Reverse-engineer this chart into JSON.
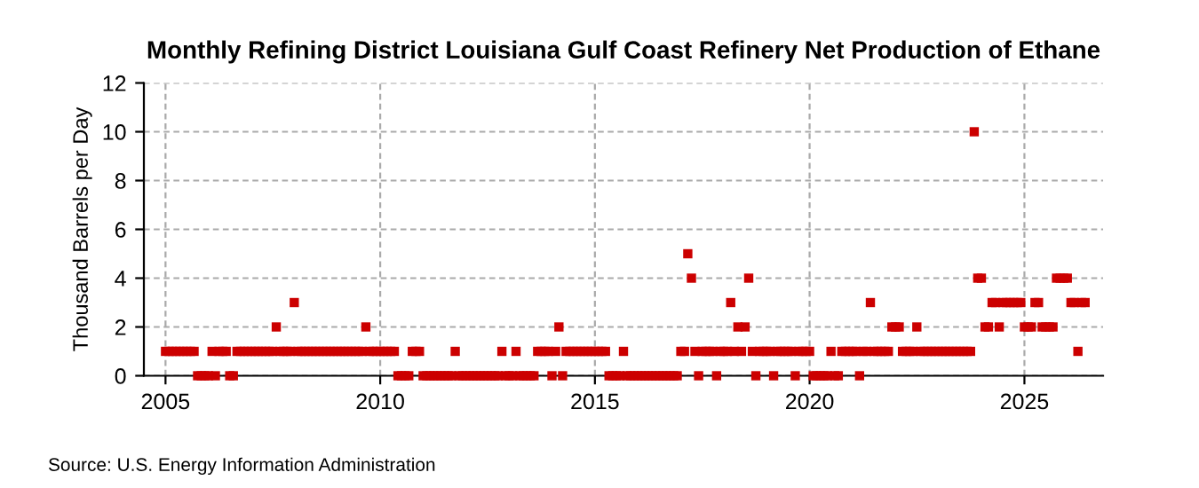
{
  "chart_data": {
    "type": "scatter",
    "title": "Monthly Refining District Louisiana Gulf Coast Refinery Net Production of Ethane",
    "ylabel": "Thousand Barrels per Day",
    "annotations": [
      "Source: U.S. Energy Information Administration"
    ],
    "x": [
      "2005-01",
      "2005-02",
      "2005-03",
      "2005-04",
      "2005-05",
      "2005-06",
      "2005-07",
      "2005-08",
      "2005-09",
      "2005-10",
      "2005-11",
      "2005-12",
      "2006-01",
      "2006-02",
      "2006-03",
      "2006-04",
      "2006-05",
      "2006-06",
      "2006-07",
      "2006-08",
      "2006-09",
      "2006-10",
      "2006-11",
      "2006-12",
      "2007-01",
      "2007-02",
      "2007-03",
      "2007-04",
      "2007-05",
      "2007-06",
      "2007-07",
      "2007-08",
      "2007-09",
      "2007-10",
      "2007-11",
      "2007-12",
      "2008-01",
      "2008-02",
      "2008-03",
      "2008-04",
      "2008-05",
      "2008-06",
      "2008-07",
      "2008-08",
      "2008-09",
      "2008-10",
      "2008-11",
      "2008-12",
      "2009-01",
      "2009-02",
      "2009-03",
      "2009-04",
      "2009-05",
      "2009-06",
      "2009-07",
      "2009-08",
      "2009-09",
      "2009-10",
      "2009-11",
      "2009-12",
      "2010-01",
      "2010-02",
      "2010-03",
      "2010-04",
      "2010-05",
      "2010-06",
      "2010-07",
      "2010-08",
      "2010-09",
      "2010-10",
      "2010-11",
      "2010-12",
      "2011-01",
      "2011-02",
      "2011-03",
      "2011-04",
      "2011-05",
      "2011-06",
      "2011-07",
      "2011-08",
      "2011-09",
      "2011-10",
      "2011-11",
      "2011-12",
      "2012-01",
      "2012-02",
      "2012-03",
      "2012-04",
      "2012-05",
      "2012-06",
      "2012-07",
      "2012-08",
      "2012-09",
      "2012-10",
      "2012-11",
      "2012-12",
      "2013-01",
      "2013-02",
      "2013-03",
      "2013-04",
      "2013-05",
      "2013-06",
      "2013-07",
      "2013-08",
      "2013-09",
      "2013-10",
      "2013-11",
      "2013-12",
      "2014-01",
      "2014-02",
      "2014-03",
      "2014-04",
      "2014-05",
      "2014-06",
      "2014-07",
      "2014-08",
      "2014-09",
      "2014-10",
      "2014-11",
      "2014-12",
      "2015-01",
      "2015-02",
      "2015-03",
      "2015-04",
      "2015-05",
      "2015-06",
      "2015-07",
      "2015-08",
      "2015-09",
      "2015-10",
      "2015-11",
      "2015-12",
      "2016-01",
      "2016-02",
      "2016-03",
      "2016-04",
      "2016-05",
      "2016-06",
      "2016-07",
      "2016-08",
      "2016-09",
      "2016-10",
      "2016-11",
      "2016-12",
      "2017-01",
      "2017-02",
      "2017-03",
      "2017-04",
      "2017-05",
      "2017-06",
      "2017-07",
      "2017-08",
      "2017-09",
      "2017-10",
      "2017-11",
      "2017-12",
      "2018-01",
      "2018-02",
      "2018-03",
      "2018-04",
      "2018-05",
      "2018-06",
      "2018-07",
      "2018-08",
      "2018-09",
      "2018-10",
      "2018-11",
      "2018-12",
      "2019-01",
      "2019-02",
      "2019-03",
      "2019-04",
      "2019-05",
      "2019-06",
      "2019-07",
      "2019-08",
      "2019-09",
      "2019-10",
      "2019-11",
      "2019-12",
      "2020-01",
      "2020-02",
      "2020-03",
      "2020-04",
      "2020-05",
      "2020-06",
      "2020-07",
      "2020-08",
      "2020-09",
      "2020-10",
      "2020-11",
      "2020-12",
      "2021-01",
      "2021-02",
      "2021-03",
      "2021-04",
      "2021-05",
      "2021-06",
      "2021-07",
      "2021-08",
      "2021-09",
      "2021-10",
      "2021-11",
      "2021-12",
      "2022-01",
      "2022-02",
      "2022-03",
      "2022-04",
      "2022-05",
      "2022-06",
      "2022-07",
      "2022-08",
      "2022-09",
      "2022-10",
      "2022-11",
      "2022-12",
      "2023-01",
      "2023-02",
      "2023-03",
      "2023-04",
      "2023-05",
      "2023-06",
      "2023-07",
      "2023-08",
      "2023-09",
      "2023-10",
      "2023-11",
      "2023-12",
      "2024-01",
      "2024-02",
      "2024-03",
      "2024-04",
      "2024-05",
      "2024-06",
      "2024-07",
      "2024-08",
      "2024-09",
      "2024-10",
      "2024-11",
      "2024-12",
      "2025-01",
      "2025-02",
      "2025-03",
      "2025-04",
      "2025-05",
      "2025-06",
      "2025-07",
      "2025-08",
      "2025-09",
      "2025-10",
      "2025-11",
      "2025-12",
      "2026-01",
      "2026-02",
      "2026-03",
      "2026-04",
      "2026-05",
      "2026-06"
    ],
    "series": [
      {
        "color": "#cc0000",
        "values": [
          1,
          1,
          1,
          1,
          1,
          1,
          1,
          1,
          1,
          0,
          0,
          0,
          0,
          1,
          0,
          1,
          1,
          1,
          0,
          0,
          1,
          1,
          1,
          1,
          1,
          1,
          1,
          1,
          1,
          1,
          1,
          2,
          1,
          1,
          1,
          1,
          3,
          1,
          1,
          1,
          1,
          1,
          1,
          1,
          1,
          1,
          1,
          1,
          1,
          1,
          1,
          1,
          1,
          1,
          1,
          1,
          2,
          1,
          1,
          1,
          1,
          1,
          1,
          1,
          1,
          0,
          0,
          0,
          0,
          1,
          1,
          1,
          0,
          0,
          0,
          0,
          0,
          0,
          0,
          0,
          0,
          1,
          0,
          0,
          0,
          0,
          0,
          0,
          0,
          0,
          0,
          0,
          0,
          0,
          1,
          0,
          0,
          0,
          1,
          0,
          0,
          0,
          0,
          0,
          1,
          1,
          1,
          1,
          0,
          1,
          2,
          0,
          1,
          1,
          1,
          1,
          1,
          1,
          1,
          1,
          1,
          1,
          1,
          1,
          0,
          0,
          0,
          0,
          1,
          0,
          0,
          0,
          0,
          0,
          0,
          0,
          0,
          0,
          0,
          0,
          0,
          0,
          0,
          0,
          1,
          1,
          5,
          4,
          1,
          0,
          1,
          1,
          1,
          1,
          0,
          1,
          1,
          1,
          3,
          1,
          2,
          1,
          2,
          4,
          1,
          0,
          1,
          1,
          1,
          1,
          0,
          1,
          1,
          1,
          1,
          1,
          0,
          1,
          1,
          1,
          1,
          0,
          0,
          0,
          0,
          0,
          1,
          0,
          0,
          1,
          1,
          1,
          1,
          1,
          0,
          1,
          1,
          3,
          1,
          1,
          1,
          1,
          1,
          2,
          2,
          2,
          1,
          1,
          1,
          1,
          2,
          1,
          1,
          1,
          1,
          1,
          1,
          1,
          1,
          1,
          1,
          1,
          1,
          1,
          1,
          1,
          10,
          4,
          4,
          2,
          2,
          3,
          3,
          2,
          3,
          3,
          3,
          3,
          3,
          3,
          2,
          2,
          2,
          3,
          3,
          2,
          2,
          2,
          2,
          4,
          4,
          4,
          4,
          3,
          3,
          1,
          3,
          3
        ]
      }
    ],
    "xlim": [
      "2004-07",
      "2026-11"
    ],
    "xticks": [
      {
        "value": "2005",
        "label": "2005"
      },
      {
        "value": "2010",
        "label": "2010"
      },
      {
        "value": "2015",
        "label": "2015"
      },
      {
        "value": "2020",
        "label": "2020"
      },
      {
        "value": "2025",
        "label": "2025"
      }
    ],
    "ylim": [
      0,
      12
    ],
    "yticks": [
      0,
      2,
      4,
      6,
      8,
      10,
      12
    ],
    "grid": true,
    "marker": "square"
  }
}
